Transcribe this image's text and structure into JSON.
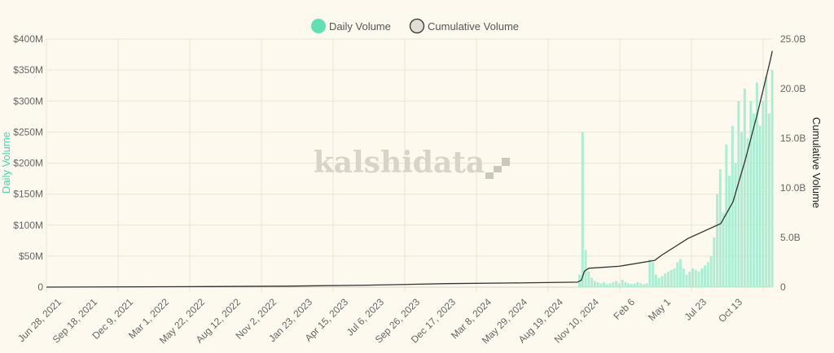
{
  "chart_data": {
    "type": "bar+line",
    "legend": {
      "placement": "top",
      "items": [
        "Daily Volume",
        "Cumulative Volume"
      ]
    },
    "watermark": "kalshidata",
    "colors": {
      "daily": "#5fe0b5",
      "daily_bar": "#a3ecd0",
      "cumulative": "#333333",
      "cumulative_legend_fill": "#e2ded6",
      "background": "#fdf9ef",
      "grid": "#ebe5d6"
    },
    "grid": true,
    "y_left": {
      "label": "Daily Volume",
      "range": [
        0,
        400000000
      ],
      "ticks": [
        "0",
        "$50M",
        "$100M",
        "$150M",
        "$200M",
        "$250M",
        "$300M",
        "$350M",
        "$400M"
      ]
    },
    "y_right": {
      "label": "Cumulative Volume",
      "range": [
        0,
        25000000000
      ],
      "ticks": [
        "0",
        "5.0B",
        "10.0B",
        "15.0B",
        "20.0B",
        "25.0B"
      ]
    },
    "x_range": [
      "2021-06-28",
      "2026-01-15"
    ],
    "x_ticks": [
      {
        "date": "2021-06-28",
        "label": "Jun 28, 2021"
      },
      {
        "date": "2021-09-18",
        "label": "Sep 18, 2021"
      },
      {
        "date": "2021-12-09",
        "label": "Dec 9, 2021"
      },
      {
        "date": "2022-03-01",
        "label": "Mar 1, 2022"
      },
      {
        "date": "2022-05-22",
        "label": "May 22, 2022"
      },
      {
        "date": "2022-08-12",
        "label": "Aug 12, 2022"
      },
      {
        "date": "2022-11-02",
        "label": "Nov 2, 2022"
      },
      {
        "date": "2023-01-23",
        "label": "Jan 23, 2023"
      },
      {
        "date": "2023-04-15",
        "label": "Apr 15, 2023"
      },
      {
        "date": "2023-07-06",
        "label": "Jul 6, 2023"
      },
      {
        "date": "2023-09-26",
        "label": "Sep 26, 2023"
      },
      {
        "date": "2023-12-17",
        "label": "Dec 17, 2023"
      },
      {
        "date": "2024-03-08",
        "label": "Mar 8, 2024"
      },
      {
        "date": "2024-05-29",
        "label": "May 29, 2024"
      },
      {
        "date": "2024-08-19",
        "label": "Aug 19, 2024"
      },
      {
        "date": "2024-11-10",
        "label": "Nov 10, 2024"
      },
      {
        "date": "2025-02-06",
        "label": "Feb 6"
      },
      {
        "date": "2025-05-01",
        "label": "May 1"
      },
      {
        "date": "2025-07-23",
        "label": "Jul 23"
      },
      {
        "date": "2025-10-13",
        "label": "Oct 13"
      }
    ],
    "daily_volume_millions": {
      "dates": [
        "2024-10-27",
        "2024-11-03",
        "2024-11-10",
        "2024-11-17",
        "2024-11-24",
        "2024-12-01",
        "2024-12-08",
        "2024-12-15",
        "2024-12-22",
        "2024-12-29",
        "2025-01-05",
        "2025-01-12",
        "2025-01-19",
        "2025-01-26",
        "2025-02-02",
        "2025-02-09",
        "2025-02-16",
        "2025-02-23",
        "2025-03-02",
        "2025-03-09",
        "2025-03-16",
        "2025-03-23",
        "2025-03-30",
        "2025-04-06",
        "2025-04-13",
        "2025-04-20",
        "2025-04-27",
        "2025-05-04",
        "2025-05-11",
        "2025-05-18",
        "2025-05-25",
        "2025-06-01",
        "2025-06-08",
        "2025-06-15",
        "2025-06-22",
        "2025-06-29",
        "2025-07-06",
        "2025-07-13",
        "2025-07-20",
        "2025-07-27",
        "2025-08-03",
        "2025-08-10",
        "2025-08-17",
        "2025-08-24",
        "2025-08-31",
        "2025-09-07",
        "2025-09-14",
        "2025-09-21",
        "2025-09-28",
        "2025-10-05",
        "2025-10-12",
        "2025-10-19",
        "2025-10-26",
        "2025-11-02",
        "2025-11-09",
        "2025-11-16",
        "2025-11-23",
        "2025-11-30",
        "2025-12-07",
        "2025-12-14",
        "2025-12-21",
        "2025-12-28",
        "2026-01-04",
        "2026-01-11"
      ],
      "values": [
        20,
        250,
        60,
        25,
        15,
        10,
        8,
        6,
        8,
        5,
        6,
        8,
        10,
        6,
        12,
        8,
        6,
        5,
        6,
        8,
        6,
        5,
        6,
        45,
        40,
        20,
        15,
        18,
        22,
        25,
        28,
        30,
        40,
        45,
        30,
        20,
        25,
        30,
        28,
        25,
        30,
        35,
        40,
        50,
        80,
        150,
        190,
        120,
        230,
        180,
        260,
        200,
        300,
        250,
        320,
        240,
        300,
        280,
        330,
        260,
        300,
        340,
        280,
        350
      ]
    },
    "cumulative_volume_billions": {
      "dates": [
        "2021-06-28",
        "2022-06-01",
        "2023-01-01",
        "2023-07-01",
        "2024-01-01",
        "2024-06-01",
        "2024-10-25",
        "2024-11-03",
        "2024-11-10",
        "2024-11-20",
        "2025-01-28",
        "2025-04-20",
        "2025-05-05",
        "2025-07-05",
        "2025-09-18",
        "2025-10-16",
        "2025-11-13",
        "2025-12-11",
        "2026-01-08",
        "2026-01-14"
      ],
      "values": [
        0,
        0.05,
        0.1,
        0.2,
        0.35,
        0.42,
        0.5,
        0.7,
        1.6,
        1.9,
        2.1,
        2.7,
        3.2,
        4.9,
        6.4,
        8.6,
        12.8,
        17.5,
        22.6,
        23.8
      ]
    }
  }
}
